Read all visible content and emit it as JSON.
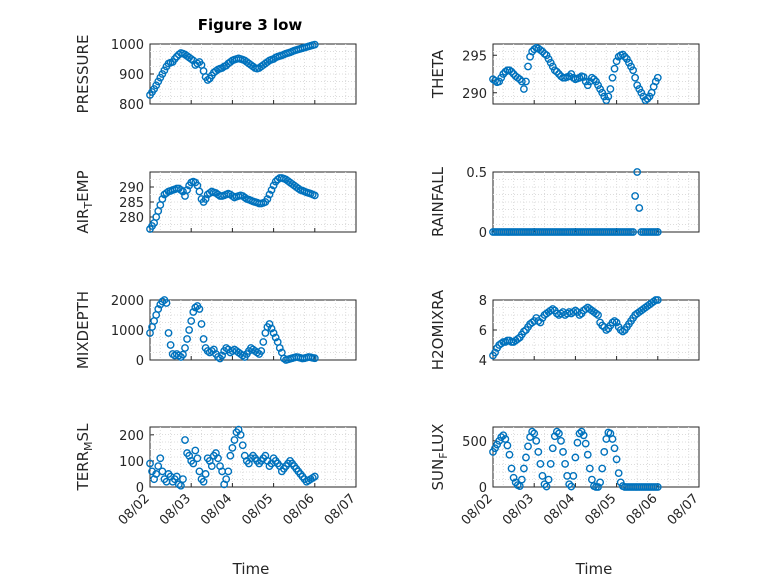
{
  "figure": {
    "title": "Figure 3 low",
    "xlabel": "Time",
    "marker_color": "#0072BD",
    "x_tick_labels": [
      "08/02",
      "08/03",
      "08/04",
      "08/05",
      "08/06",
      "08/07"
    ]
  },
  "chart_data": [
    {
      "type": "scatter",
      "id": "pressure",
      "ylabel": "PRESSURE",
      "ylim": [
        800,
        1000
      ],
      "yticks": [
        800,
        900,
        1000
      ],
      "x_unit": "days since 08/02",
      "x": [
        0.0,
        0.05,
        0.1,
        0.15,
        0.2,
        0.25,
        0.3,
        0.35,
        0.4,
        0.45,
        0.5,
        0.55,
        0.6,
        0.65,
        0.7,
        0.75,
        0.8,
        0.85,
        0.9,
        0.95,
        1.0,
        1.05,
        1.1,
        1.15,
        1.2,
        1.25,
        1.3,
        1.35,
        1.4,
        1.45,
        1.5,
        1.55,
        1.6,
        1.65,
        1.7,
        1.75,
        1.8,
        1.85,
        1.9,
        1.95,
        2.0,
        2.05,
        2.1,
        2.15,
        2.2,
        2.25,
        2.3,
        2.35,
        2.4,
        2.45,
        2.5,
        2.55,
        2.6,
        2.65,
        2.7,
        2.75,
        2.8,
        2.85,
        2.9,
        2.95,
        3.0,
        3.05,
        3.1,
        3.15,
        3.2,
        3.25,
        3.3,
        3.35,
        3.4,
        3.45,
        3.5,
        3.55,
        3.6,
        3.65,
        3.7,
        3.75,
        3.8,
        3.85,
        3.9,
        3.95,
        4.0
      ],
      "y": [
        830,
        840,
        850,
        862,
        875,
        888,
        900,
        912,
        925,
        935,
        938,
        940,
        950,
        958,
        965,
        970,
        968,
        965,
        960,
        955,
        950,
        945,
        930,
        935,
        940,
        930,
        910,
        890,
        880,
        885,
        895,
        905,
        910,
        915,
        918,
        920,
        925,
        928,
        935,
        940,
        945,
        948,
        950,
        952,
        950,
        948,
        945,
        940,
        935,
        930,
        925,
        920,
        918,
        920,
        925,
        930,
        935,
        940,
        945,
        948,
        950,
        955,
        958,
        960,
        962,
        965,
        968,
        970,
        972,
        975,
        978,
        980,
        982,
        984,
        986,
        988,
        990,
        992,
        994,
        996,
        998
      ]
    },
    {
      "type": "scatter",
      "id": "theta",
      "ylabel": "THETA",
      "ylim": [
        288.5,
        296.5
      ],
      "yticks": [
        290,
        295
      ],
      "x_unit": "days since 08/02",
      "x": [
        0.0,
        0.05,
        0.1,
        0.15,
        0.2,
        0.25,
        0.3,
        0.35,
        0.4,
        0.45,
        0.5,
        0.55,
        0.6,
        0.65,
        0.7,
        0.75,
        0.8,
        0.85,
        0.9,
        0.95,
        1.0,
        1.05,
        1.1,
        1.15,
        1.2,
        1.25,
        1.3,
        1.35,
        1.4,
        1.45,
        1.5,
        1.55,
        1.6,
        1.65,
        1.7,
        1.75,
        1.8,
        1.85,
        1.9,
        1.95,
        2.0,
        2.05,
        2.1,
        2.15,
        2.2,
        2.25,
        2.3,
        2.35,
        2.4,
        2.45,
        2.5,
        2.55,
        2.6,
        2.65,
        2.7,
        2.75,
        2.8,
        2.85,
        2.9,
        2.95,
        3.0,
        3.05,
        3.1,
        3.15,
        3.2,
        3.25,
        3.3,
        3.35,
        3.4,
        3.45,
        3.5,
        3.55,
        3.6,
        3.65,
        3.7,
        3.75,
        3.8,
        3.85,
        3.9,
        3.95,
        4.0
      ],
      "y": [
        291.8,
        291.6,
        291.4,
        291.5,
        292,
        292.5,
        292.8,
        293,
        293,
        292.8,
        292.5,
        292.2,
        292,
        291.8,
        291.5,
        290.5,
        291.5,
        293.5,
        294.8,
        295.5,
        295.8,
        296,
        295.9,
        295.7,
        295.5,
        295.2,
        295,
        294.5,
        294,
        293.5,
        293,
        292.8,
        292.5,
        292.2,
        292,
        292,
        292.1,
        292.2,
        292.5,
        292,
        291.8,
        291.9,
        292,
        292.2,
        292.1,
        291.5,
        291,
        291.5,
        292,
        291.8,
        291.5,
        291,
        290.5,
        290,
        289.5,
        289,
        289.5,
        290.5,
        292,
        293.2,
        294.2,
        294.8,
        295,
        295.1,
        294.8,
        294.5,
        294,
        293.5,
        293,
        292,
        291,
        290.5,
        290,
        289.5,
        289,
        289.2,
        289.5,
        290,
        290.8,
        291.5,
        292
      ]
    },
    {
      "type": "scatter",
      "id": "air_temp",
      "ylabel": "AIR_TEMP",
      "ylim": [
        275,
        295
      ],
      "yticks": [
        280,
        285,
        290
      ],
      "x_unit": "days since 08/02",
      "x": [
        0.0,
        0.05,
        0.1,
        0.15,
        0.2,
        0.25,
        0.3,
        0.35,
        0.4,
        0.45,
        0.5,
        0.55,
        0.6,
        0.65,
        0.7,
        0.75,
        0.8,
        0.85,
        0.9,
        0.95,
        1.0,
        1.05,
        1.1,
        1.15,
        1.2,
        1.25,
        1.3,
        1.35,
        1.4,
        1.45,
        1.5,
        1.55,
        1.6,
        1.65,
        1.7,
        1.75,
        1.8,
        1.85,
        1.9,
        1.95,
        2.0,
        2.05,
        2.1,
        2.15,
        2.2,
        2.25,
        2.3,
        2.35,
        2.4,
        2.45,
        2.5,
        2.55,
        2.6,
        2.65,
        2.7,
        2.75,
        2.8,
        2.85,
        2.9,
        2.95,
        3.0,
        3.05,
        3.1,
        3.15,
        3.2,
        3.25,
        3.3,
        3.35,
        3.4,
        3.45,
        3.5,
        3.55,
        3.6,
        3.65,
        3.7,
        3.75,
        3.8,
        3.85,
        3.9,
        3.95,
        4.0
      ],
      "y": [
        276,
        277,
        278,
        280,
        282,
        284,
        286,
        287.5,
        288,
        288.5,
        288.7,
        289,
        289.2,
        289.5,
        289.5,
        289,
        288.5,
        287,
        289,
        290.5,
        291.5,
        291.8,
        291.5,
        290.5,
        288.5,
        286,
        285,
        286,
        287.5,
        288,
        288.5,
        288.2,
        288,
        287.5,
        287,
        287,
        287.2,
        287.5,
        287.8,
        287.5,
        287,
        286.5,
        286.8,
        287,
        287.2,
        287,
        286.5,
        286,
        285.8,
        285.5,
        285.2,
        285,
        284.8,
        284.5,
        284.5,
        284.7,
        285,
        286,
        287.5,
        289,
        290.5,
        291.8,
        292.5,
        293,
        293,
        292.8,
        292.5,
        292,
        291.5,
        291,
        290.5,
        290,
        289.5,
        289,
        288.8,
        288.5,
        288.2,
        288,
        287.8,
        287.5,
        287.2
      ]
    },
    {
      "type": "scatter",
      "id": "rainfall",
      "ylabel": "RAINFALL",
      "ylim": [
        0,
        0.5
      ],
      "yticks": [
        0,
        0.5
      ],
      "x_unit": "days since 08/02",
      "x": [
        0.0,
        0.05,
        0.1,
        0.15,
        0.2,
        0.25,
        0.3,
        0.35,
        0.4,
        0.45,
        0.5,
        0.55,
        0.6,
        0.65,
        0.7,
        0.75,
        0.8,
        0.85,
        0.9,
        0.95,
        1.0,
        1.05,
        1.1,
        1.15,
        1.2,
        1.25,
        1.3,
        1.35,
        1.4,
        1.45,
        1.5,
        1.55,
        1.6,
        1.65,
        1.7,
        1.75,
        1.8,
        1.85,
        1.9,
        1.95,
        2.0,
        2.05,
        2.1,
        2.15,
        2.2,
        2.25,
        2.3,
        2.35,
        2.4,
        2.45,
        2.5,
        2.55,
        2.6,
        2.65,
        2.7,
        2.75,
        2.8,
        2.85,
        2.9,
        2.95,
        3.0,
        3.05,
        3.1,
        3.15,
        3.2,
        3.25,
        3.3,
        3.35,
        3.4,
        3.45,
        3.5,
        3.55,
        3.6,
        3.65,
        3.7,
        3.75,
        3.8,
        3.85,
        3.9,
        3.95,
        4.0
      ],
      "y": [
        0,
        0,
        0,
        0,
        0,
        0,
        0,
        0,
        0,
        0,
        0,
        0,
        0,
        0,
        0,
        0,
        0,
        0,
        0,
        0,
        0,
        0,
        0,
        0,
        0,
        0,
        0,
        0,
        0,
        0,
        0,
        0,
        0,
        0,
        0,
        0,
        0,
        0,
        0,
        0,
        0,
        0,
        0,
        0,
        0,
        0,
        0,
        0,
        0,
        0,
        0,
        0,
        0,
        0,
        0,
        0,
        0,
        0,
        0,
        0,
        0,
        0,
        0,
        0,
        0,
        0,
        0,
        0,
        0,
        0.3,
        0.5,
        0.2,
        0,
        0,
        0,
        0,
        0,
        0,
        0,
        0,
        0
      ]
    },
    {
      "type": "scatter",
      "id": "mixdepth",
      "ylabel": "MIXDEPTH",
      "ylim": [
        0,
        2000
      ],
      "yticks": [
        0,
        1000,
        2000
      ],
      "x_unit": "days since 08/02",
      "x": [
        0.0,
        0.05,
        0.1,
        0.15,
        0.2,
        0.25,
        0.3,
        0.35,
        0.4,
        0.45,
        0.5,
        0.55,
        0.6,
        0.65,
        0.7,
        0.75,
        0.8,
        0.85,
        0.9,
        0.95,
        1.0,
        1.05,
        1.1,
        1.15,
        1.2,
        1.25,
        1.3,
        1.35,
        1.4,
        1.45,
        1.5,
        1.55,
        1.6,
        1.65,
        1.7,
        1.75,
        1.8,
        1.85,
        1.9,
        1.95,
        2.0,
        2.05,
        2.1,
        2.15,
        2.2,
        2.25,
        2.3,
        2.35,
        2.4,
        2.45,
        2.5,
        2.55,
        2.6,
        2.65,
        2.7,
        2.75,
        2.8,
        2.85,
        2.9,
        2.95,
        3.0,
        3.05,
        3.1,
        3.15,
        3.2,
        3.25,
        3.3,
        3.35,
        3.4,
        3.45,
        3.5,
        3.55,
        3.6,
        3.65,
        3.7,
        3.75,
        3.8,
        3.85,
        3.9,
        3.95,
        4.0
      ],
      "y": [
        900,
        1100,
        1300,
        1500,
        1700,
        1850,
        1950,
        2000,
        1900,
        900,
        500,
        200,
        150,
        200,
        150,
        100,
        180,
        400,
        700,
        1000,
        1300,
        1600,
        1750,
        1800,
        1700,
        1200,
        700,
        400,
        300,
        250,
        300,
        350,
        200,
        100,
        50,
        150,
        300,
        400,
        350,
        250,
        300,
        350,
        300,
        250,
        200,
        150,
        100,
        200,
        300,
        400,
        350,
        300,
        250,
        200,
        300,
        600,
        900,
        1100,
        1200,
        1050,
        900,
        750,
        600,
        400,
        250,
        50,
        0,
        20,
        40,
        60,
        80,
        100,
        90,
        70,
        50,
        60,
        80,
        100,
        90,
        70,
        60
      ]
    },
    {
      "type": "scatter",
      "id": "h2omixra",
      "ylabel": "H2OMIXRA",
      "ylim": [
        4,
        8
      ],
      "yticks": [
        4,
        6,
        8
      ],
      "x_unit": "days since 08/02",
      "x": [
        0.0,
        0.05,
        0.1,
        0.15,
        0.2,
        0.25,
        0.3,
        0.35,
        0.4,
        0.45,
        0.5,
        0.55,
        0.6,
        0.65,
        0.7,
        0.75,
        0.8,
        0.85,
        0.9,
        0.95,
        1.0,
        1.05,
        1.1,
        1.15,
        1.2,
        1.25,
        1.3,
        1.35,
        1.4,
        1.45,
        1.5,
        1.55,
        1.6,
        1.65,
        1.7,
        1.75,
        1.8,
        1.85,
        1.9,
        1.95,
        2.0,
        2.05,
        2.1,
        2.15,
        2.2,
        2.25,
        2.3,
        2.35,
        2.4,
        2.45,
        2.5,
        2.55,
        2.6,
        2.65,
        2.7,
        2.75,
        2.8,
        2.85,
        2.9,
        2.95,
        3.0,
        3.05,
        3.1,
        3.15,
        3.2,
        3.25,
        3.3,
        3.35,
        3.4,
        3.45,
        3.5,
        3.55,
        3.6,
        3.65,
        3.7,
        3.75,
        3.8,
        3.85,
        3.9,
        3.95,
        4.0
      ],
      "y": [
        4.3,
        4.5,
        4.8,
        5.0,
        5.1,
        5.2,
        5.2,
        5.3,
        5.3,
        5.2,
        5.2,
        5.3,
        5.4,
        5.5,
        5.7,
        5.9,
        6.0,
        6.2,
        6.4,
        6.5,
        6.6,
        6.8,
        6.6,
        6.5,
        6.8,
        7.0,
        7.1,
        7.2,
        7.3,
        7.4,
        7.3,
        7.1,
        7.0,
        7.1,
        7.2,
        7.0,
        7.1,
        7.2,
        7.1,
        7.2,
        7.3,
        7.2,
        7.0,
        7.1,
        7.3,
        7.4,
        7.5,
        7.4,
        7.3,
        7.2,
        7.1,
        7.0,
        6.5,
        6.3,
        6.2,
        6.0,
        6.1,
        6.3,
        6.5,
        6.6,
        6.5,
        6.2,
        6.0,
        5.9,
        6.0,
        6.2,
        6.4,
        6.6,
        6.8,
        7.0,
        7.1,
        7.2,
        7.3,
        7.4,
        7.5,
        7.6,
        7.7,
        7.8,
        7.9,
        8.0,
        8.0
      ]
    },
    {
      "type": "scatter",
      "id": "terr_msl",
      "ylabel": "TERR_MSL",
      "ylim": [
        0,
        230
      ],
      "yticks": [
        0,
        100,
        200
      ],
      "x_unit": "days since 08/02",
      "x": [
        0.0,
        0.05,
        0.1,
        0.15,
        0.2,
        0.25,
        0.3,
        0.35,
        0.4,
        0.45,
        0.5,
        0.55,
        0.6,
        0.65,
        0.7,
        0.75,
        0.8,
        0.85,
        0.9,
        0.95,
        1.0,
        1.05,
        1.1,
        1.15,
        1.2,
        1.25,
        1.3,
        1.35,
        1.4,
        1.45,
        1.5,
        1.55,
        1.6,
        1.65,
        1.7,
        1.75,
        1.8,
        1.85,
        1.9,
        1.95,
        2.0,
        2.05,
        2.1,
        2.15,
        2.2,
        2.25,
        2.3,
        2.35,
        2.4,
        2.45,
        2.5,
        2.55,
        2.6,
        2.65,
        2.7,
        2.75,
        2.8,
        2.85,
        2.9,
        2.95,
        3.0,
        3.05,
        3.1,
        3.15,
        3.2,
        3.25,
        3.3,
        3.35,
        3.4,
        3.45,
        3.5,
        3.55,
        3.6,
        3.65,
        3.7,
        3.75,
        3.8,
        3.85,
        3.9,
        3.95,
        4.0
      ],
      "y": [
        90,
        60,
        30,
        50,
        80,
        110,
        60,
        30,
        20,
        50,
        40,
        20,
        30,
        40,
        10,
        5,
        30,
        180,
        130,
        120,
        100,
        90,
        140,
        110,
        60,
        30,
        20,
        50,
        110,
        100,
        80,
        120,
        130,
        110,
        80,
        60,
        10,
        30,
        60,
        120,
        150,
        180,
        210,
        220,
        200,
        160,
        120,
        100,
        90,
        110,
        120,
        110,
        100,
        90,
        100,
        110,
        120,
        100,
        80,
        90,
        110,
        100,
        90,
        80,
        60,
        70,
        80,
        90,
        100,
        90,
        80,
        70,
        60,
        50,
        40,
        30,
        20,
        25,
        30,
        35,
        40
      ]
    },
    {
      "type": "scatter",
      "id": "sun_flux",
      "ylabel": "SUN_FLUX",
      "ylim": [
        0,
        650
      ],
      "yticks": [
        0,
        500
      ],
      "x_unit": "days since 08/02",
      "x": [
        0.0,
        0.05,
        0.1,
        0.15,
        0.2,
        0.25,
        0.3,
        0.35,
        0.4,
        0.45,
        0.5,
        0.55,
        0.6,
        0.65,
        0.7,
        0.75,
        0.8,
        0.85,
        0.9,
        0.95,
        1.0,
        1.05,
        1.1,
        1.15,
        1.2,
        1.25,
        1.3,
        1.35,
        1.4,
        1.45,
        1.5,
        1.55,
        1.6,
        1.65,
        1.7,
        1.75,
        1.8,
        1.85,
        1.9,
        1.95,
        2.0,
        2.05,
        2.1,
        2.15,
        2.2,
        2.25,
        2.3,
        2.35,
        2.4,
        2.45,
        2.5,
        2.55,
        2.6,
        2.65,
        2.7,
        2.75,
        2.8,
        2.85,
        2.9,
        2.95,
        3.0,
        3.05,
        3.1,
        3.15,
        3.2,
        3.25,
        3.3,
        3.35,
        3.4,
        3.45,
        3.5,
        3.55,
        3.6,
        3.65,
        3.7,
        3.75,
        3.8,
        3.85,
        3.9,
        3.95,
        4.0
      ],
      "y": [
        380,
        420,
        460,
        500,
        540,
        560,
        520,
        450,
        350,
        200,
        100,
        50,
        20,
        10,
        80,
        200,
        320,
        440,
        540,
        600,
        580,
        500,
        380,
        250,
        120,
        30,
        5,
        80,
        250,
        420,
        550,
        600,
        580,
        500,
        380,
        250,
        120,
        30,
        5,
        120,
        320,
        480,
        580,
        600,
        560,
        470,
        350,
        200,
        80,
        10,
        0,
        0,
        50,
        200,
        380,
        520,
        590,
        580,
        520,
        420,
        300,
        150,
        50,
        10,
        0,
        0,
        0,
        0,
        0,
        0,
        0,
        0,
        0,
        0,
        0,
        0,
        0,
        0,
        0,
        0,
        0
      ]
    }
  ]
}
